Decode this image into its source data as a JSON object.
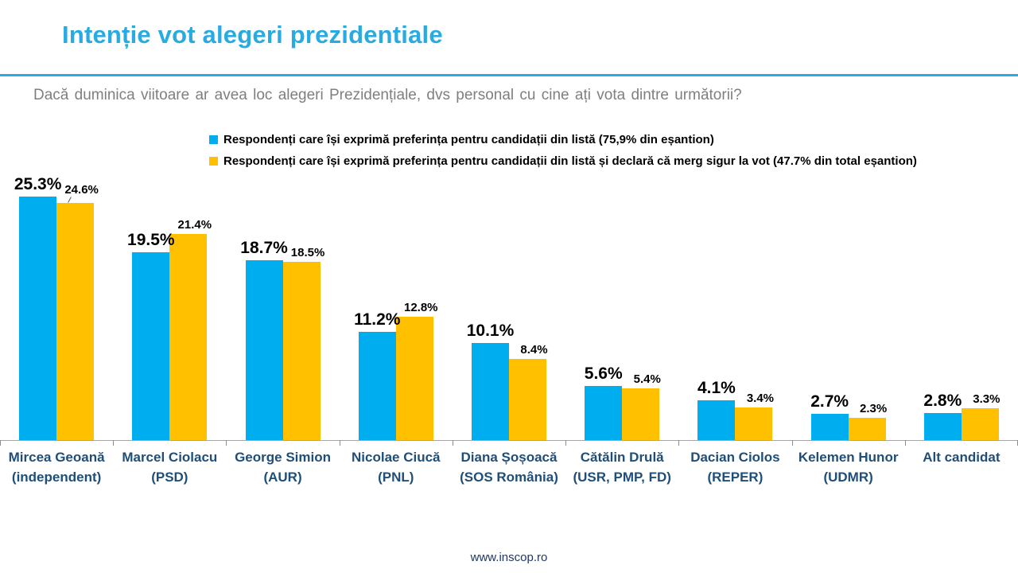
{
  "header": {
    "title": "Intenție vot alegeri prezidentiale",
    "question": "Dacă duminica viitoare ar avea loc alegeri Prezidențiale, dvs personal cu cine ați vota dintre următorii?"
  },
  "chart_data": {
    "type": "bar",
    "title": "Intenție vot alegeri prezidentiale",
    "categories": [
      "Mircea Geoană (independent)",
      "Marcel Ciolacu (PSD)",
      "George Simion (AUR)",
      "Nicolae Ciucă (PNL)",
      "Diana Șoșoacă (SOS România)",
      "Cătălin Drulă (USR, PMP, FD)",
      "Dacian Ciolos (REPER)",
      "Kelemen Hunor (UDMR)",
      "Alt candidat"
    ],
    "series": [
      {
        "name": "Respondenți care își exprimă preferința pentru candidații din listă (75,9% din eșantion)",
        "color": "#00aeef",
        "values": [
          25.3,
          19.5,
          18.7,
          11.2,
          10.1,
          5.6,
          4.1,
          2.7,
          2.8
        ],
        "labels": [
          "25.3%",
          "19.5%",
          "18.7%",
          "11.2%",
          "10.1%",
          "5.6%",
          "4.1%",
          "2.7%",
          "2.8%"
        ]
      },
      {
        "name": "Respondenți care își exprimă preferința pentru candidații din listă și declară că merg sigur la vot (47.7% din total eșantion)",
        "color": "#ffc000",
        "values": [
          24.6,
          21.4,
          18.5,
          12.8,
          8.4,
          5.4,
          3.4,
          2.3,
          3.3
        ],
        "labels": [
          "24.6%",
          "21.4%",
          "18.5%",
          "12.8%",
          "8.4%",
          "5.4%",
          "3.4%",
          "2.3%",
          "3.3%"
        ]
      }
    ],
    "value_suffix": "%",
    "xlabel": "",
    "ylabel": "",
    "ylim": [
      0,
      27
    ],
    "grid": false,
    "legend_position": "top",
    "data_labels": true
  },
  "colors": {
    "accent_blue": "#29abe2",
    "bar_blue": "#00aeef",
    "bar_yellow": "#ffc000",
    "category_text": "#1f4e79",
    "question_text": "#7f7f7f",
    "axis_line": "#a6a6a6"
  },
  "footer": {
    "website": "www.inscop.ro"
  }
}
